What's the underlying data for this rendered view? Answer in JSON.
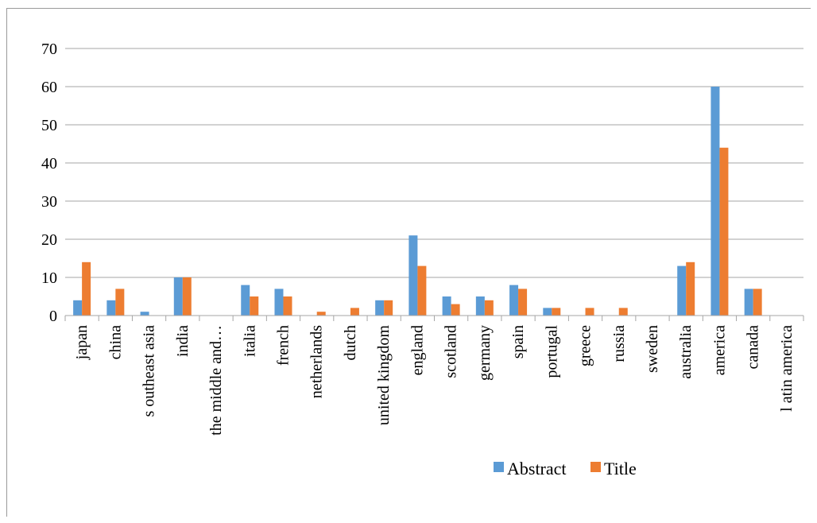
{
  "chart_data": {
    "type": "bar",
    "title": "",
    "xlabel": "",
    "ylabel": "",
    "ylim": [
      0,
      70
    ],
    "yticks": [
      "0",
      "10",
      "20",
      "30",
      "40",
      "50",
      "60",
      "70"
    ],
    "grid": true,
    "legend_position": "bottom-right",
    "categories": [
      "japan",
      "china",
      "s outheast asia",
      "india",
      "the middle and…",
      "italia",
      "french",
      "netherlands",
      "dutch",
      "united kingdom",
      "england",
      "scotland",
      "germany",
      "spain",
      "portugal",
      "greece",
      "russia",
      "sweden",
      "australia",
      "america",
      "canada",
      "l atin america"
    ],
    "series": [
      {
        "name": "Abstract",
        "color": "#5b9bd5",
        "values": [
          4,
          4,
          1,
          10,
          0,
          8,
          7,
          0,
          0,
          4,
          21,
          5,
          5,
          8,
          2,
          0,
          0,
          0,
          13,
          60,
          7,
          0
        ]
      },
      {
        "name": "Title",
        "color": "#ed7d31",
        "values": [
          14,
          7,
          0,
          10,
          0,
          5,
          5,
          1,
          2,
          4,
          13,
          3,
          4,
          7,
          2,
          2,
          2,
          0,
          14,
          44,
          7,
          0
        ]
      }
    ]
  }
}
